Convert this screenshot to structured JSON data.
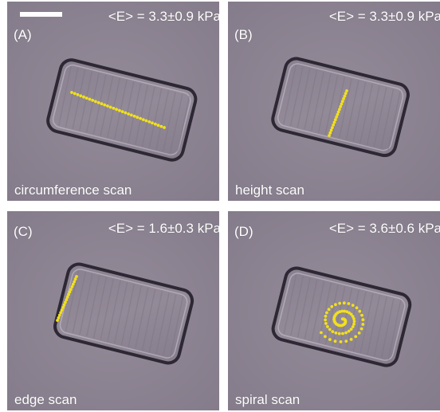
{
  "panels": [
    {
      "letter": "(A)",
      "modulus": "<E> = 3.3±0.9 kPa",
      "scan": "circumference scan"
    },
    {
      "letter": "(B)",
      "modulus": "<E> = 3.3±0.9 kPa",
      "scan": "height scan"
    },
    {
      "letter": "(C)",
      "modulus": "<E> = 1.6±0.3 kPa",
      "scan": "edge scan"
    },
    {
      "letter": "(D)",
      "modulus": "<E> = 3.6±0.6 kPa",
      "scan": "spiral scan"
    }
  ],
  "colors": {
    "scan_points": "#f2e01c",
    "background": "#8d8493",
    "label_text": "#ffffff"
  }
}
